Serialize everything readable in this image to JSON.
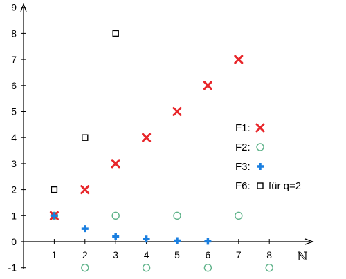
{
  "chart_data": {
    "type": "scatter",
    "xlabel": "ℕ",
    "ylabel": "",
    "xlim": [
      0,
      8.6
    ],
    "ylim": [
      -1,
      9
    ],
    "x_ticks": [
      1,
      2,
      3,
      4,
      5,
      6,
      7,
      8
    ],
    "y_ticks": [
      -1,
      0,
      1,
      2,
      3,
      4,
      5,
      6,
      7,
      8,
      9
    ],
    "legend_position": "right",
    "series": [
      {
        "name": "F1:",
        "marker": "x",
        "color": "#e8262a",
        "points": [
          [
            1,
            1
          ],
          [
            2,
            2
          ],
          [
            3,
            3
          ],
          [
            4,
            4
          ],
          [
            5,
            5
          ],
          [
            6,
            6
          ],
          [
            7,
            7
          ]
        ]
      },
      {
        "name": "F2:",
        "marker": "circle",
        "color": "#5fb38a",
        "points": [
          [
            1,
            1
          ],
          [
            2,
            -1
          ],
          [
            3,
            1
          ],
          [
            4,
            -1
          ],
          [
            5,
            1
          ],
          [
            6,
            -1
          ],
          [
            7,
            1
          ],
          [
            8,
            -1
          ]
        ]
      },
      {
        "name": "F3:",
        "marker": "plus",
        "color": "#1a7fe0",
        "points": [
          [
            1,
            1
          ],
          [
            2,
            0.5
          ],
          [
            3,
            0.2
          ],
          [
            4,
            0.1
          ],
          [
            5,
            0.04
          ],
          [
            6,
            0.016
          ]
        ]
      },
      {
        "name": "F6:",
        "suffix": "für q=2",
        "marker": "square",
        "color": "#000000",
        "points": [
          [
            1,
            2
          ],
          [
            2,
            4
          ],
          [
            3,
            8
          ]
        ]
      }
    ]
  }
}
